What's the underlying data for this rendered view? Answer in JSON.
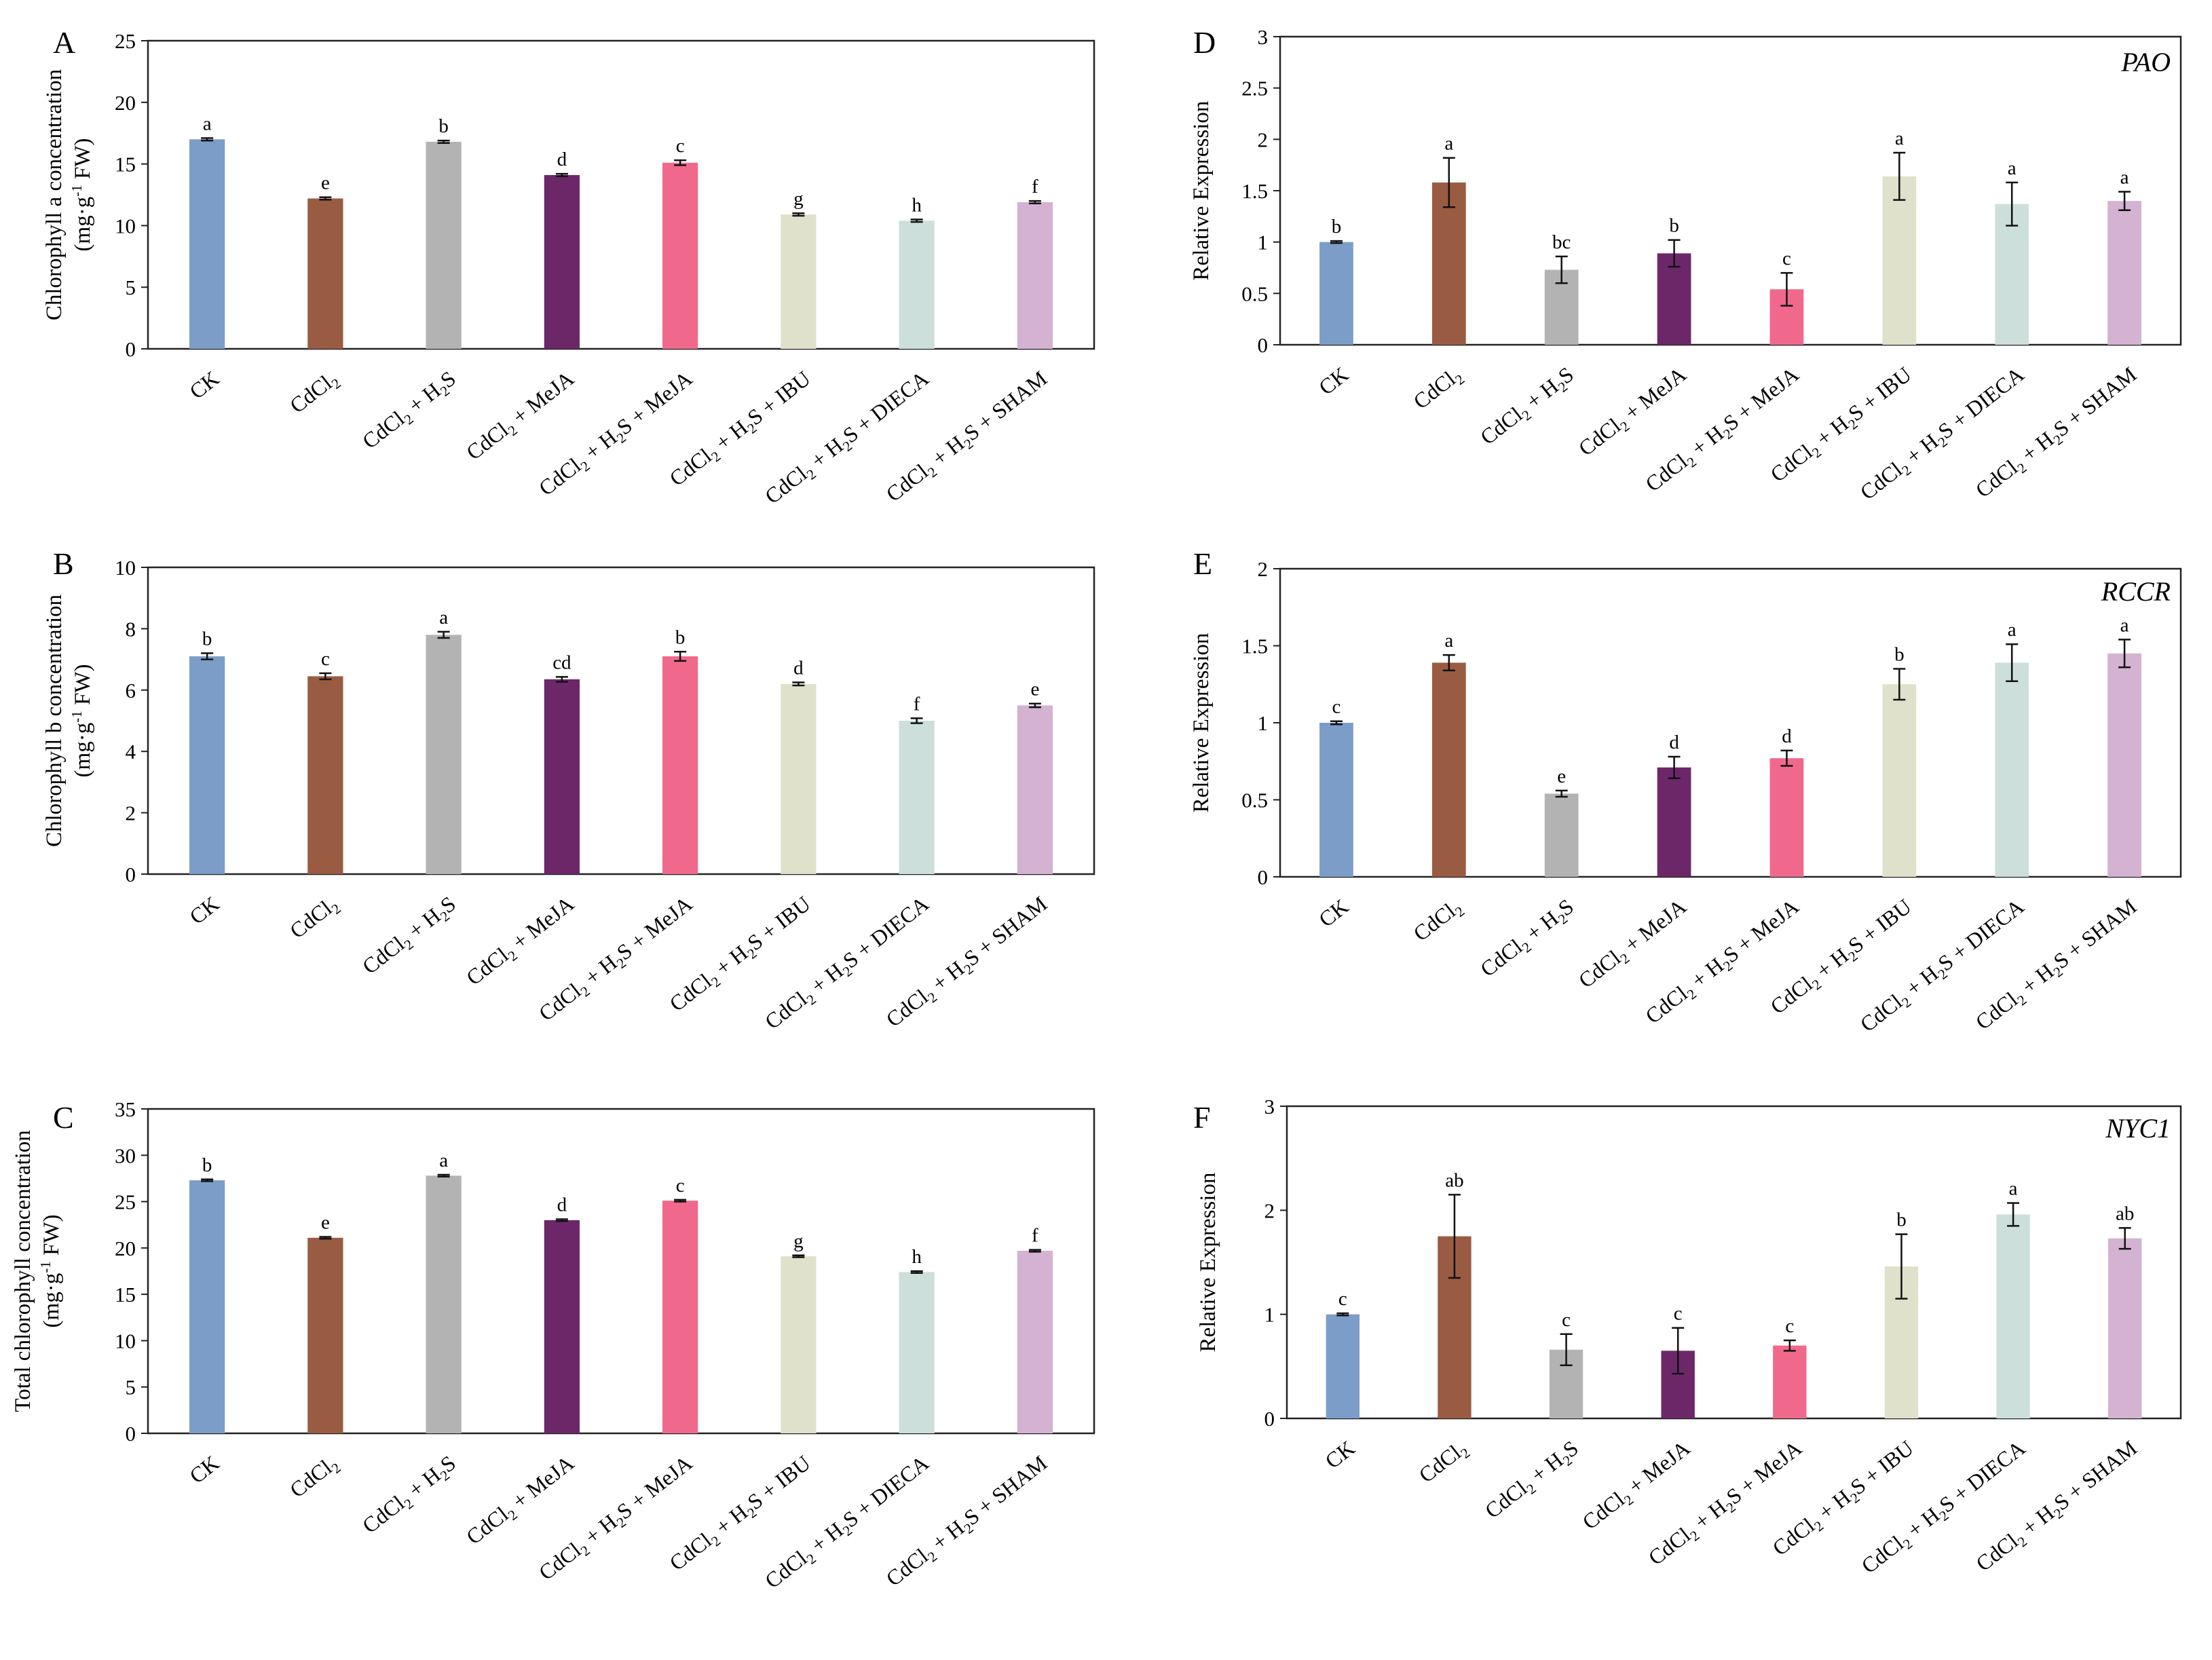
{
  "categories": [
    [
      "CK"
    ],
    [
      "CdCl",
      "2"
    ],
    [
      "CdCl",
      "2",
      " + H",
      "2",
      "S"
    ],
    [
      "CdCl",
      "2",
      " + MeJA"
    ],
    [
      "CdCl",
      "2",
      " + H",
      "2",
      "S + MeJA"
    ],
    [
      "CdCl",
      "2",
      " + H",
      "2",
      "S + IBU"
    ],
    [
      "CdCl",
      "2",
      " + H",
      "2",
      "S + DIECA"
    ],
    [
      "CdCl",
      "2",
      " + H",
      "2",
      "S + SHAM"
    ]
  ],
  "colors": [
    "#7C9DC8",
    "#9A5B43",
    "#B3B3B3",
    "#6C2769",
    "#F0698C",
    "#E0E1CB",
    "#CCDFDA",
    "#D4B2D2"
  ],
  "chart_data": [
    {
      "panel": "A",
      "type": "bar",
      "ylabel": [
        "Chlorophyll a concentration",
        "(mg·g",
        "-1",
        " FW)"
      ],
      "ylim": [
        0,
        25
      ],
      "yticks": [
        0,
        5,
        10,
        15,
        20,
        25
      ],
      "values": [
        17.0,
        12.2,
        16.8,
        14.1,
        15.1,
        10.9,
        10.4,
        11.9
      ],
      "errors": [
        0.1,
        0.1,
        0.1,
        0.1,
        0.2,
        0.1,
        0.1,
        0.1
      ],
      "significance": [
        "a",
        "e",
        "b",
        "d",
        "c",
        "g",
        "h",
        "f"
      ]
    },
    {
      "panel": "B",
      "type": "bar",
      "ylabel": [
        "Chlorophyll b concentration",
        "(mg·g",
        "-1",
        " FW)"
      ],
      "ylim": [
        0,
        10
      ],
      "yticks": [
        0,
        2,
        4,
        6,
        8,
        10
      ],
      "values": [
        7.1,
        6.45,
        7.8,
        6.35,
        7.1,
        6.2,
        5.0,
        5.5
      ],
      "errors": [
        0.1,
        0.1,
        0.1,
        0.08,
        0.15,
        0.05,
        0.08,
        0.06
      ],
      "significance": [
        "b",
        "c",
        "a",
        "cd",
        "b",
        "d",
        "f",
        "e"
      ]
    },
    {
      "panel": "C",
      "type": "bar",
      "ylabel": [
        "Total chlorophyll concentration",
        "(mg·g",
        "-1",
        " FW)"
      ],
      "ylim": [
        0,
        35
      ],
      "yticks": [
        0,
        5,
        10,
        15,
        20,
        25,
        30,
        35
      ],
      "values": [
        27.3,
        21.1,
        27.8,
        23.0,
        25.1,
        19.1,
        17.4,
        19.7
      ],
      "errors": [
        0.1,
        0.1,
        0.1,
        0.1,
        0.1,
        0.1,
        0.1,
        0.1
      ],
      "significance": [
        "b",
        "e",
        "a",
        "d",
        "c",
        "g",
        "h",
        "f"
      ]
    },
    {
      "panel": "D",
      "type": "bar",
      "gene": "PAO",
      "ylabel": [
        "Relative Expression"
      ],
      "ylim": [
        0,
        3
      ],
      "yticks": [
        0,
        0.5,
        1,
        1.5,
        2,
        2.5,
        3
      ],
      "values": [
        1.0,
        1.58,
        0.73,
        0.89,
        0.54,
        1.64,
        1.37,
        1.4
      ],
      "errors": [
        0.01,
        0.24,
        0.13,
        0.13,
        0.16,
        0.23,
        0.21,
        0.09
      ],
      "significance": [
        "b",
        "a",
        "bc",
        "b",
        "c",
        "a",
        "a",
        "a"
      ]
    },
    {
      "panel": "E",
      "type": "bar",
      "gene": "RCCR",
      "ylabel": [
        "Relative Expression"
      ],
      "ylim": [
        0,
        2
      ],
      "yticks": [
        0,
        0.5,
        1,
        1.5,
        2
      ],
      "values": [
        1.0,
        1.39,
        0.54,
        0.71,
        0.77,
        1.25,
        1.39,
        1.45
      ],
      "errors": [
        0.01,
        0.05,
        0.02,
        0.07,
        0.05,
        0.1,
        0.12,
        0.09
      ],
      "significance": [
        "c",
        "a",
        "e",
        "d",
        "d",
        "b",
        "a",
        "a"
      ]
    },
    {
      "panel": "F",
      "type": "bar",
      "gene": "NYC1",
      "ylabel": [
        "Relative Expression"
      ],
      "ylim": [
        0,
        3
      ],
      "yticks": [
        0,
        1,
        2,
        3
      ],
      "values": [
        1.0,
        1.75,
        0.66,
        0.65,
        0.7,
        1.46,
        1.96,
        1.73
      ],
      "errors": [
        0.01,
        0.4,
        0.15,
        0.22,
        0.05,
        0.31,
        0.11,
        0.1
      ],
      "significance": [
        "c",
        "ab",
        "c",
        "c",
        "c",
        "b",
        "a",
        "ab"
      ]
    }
  ]
}
